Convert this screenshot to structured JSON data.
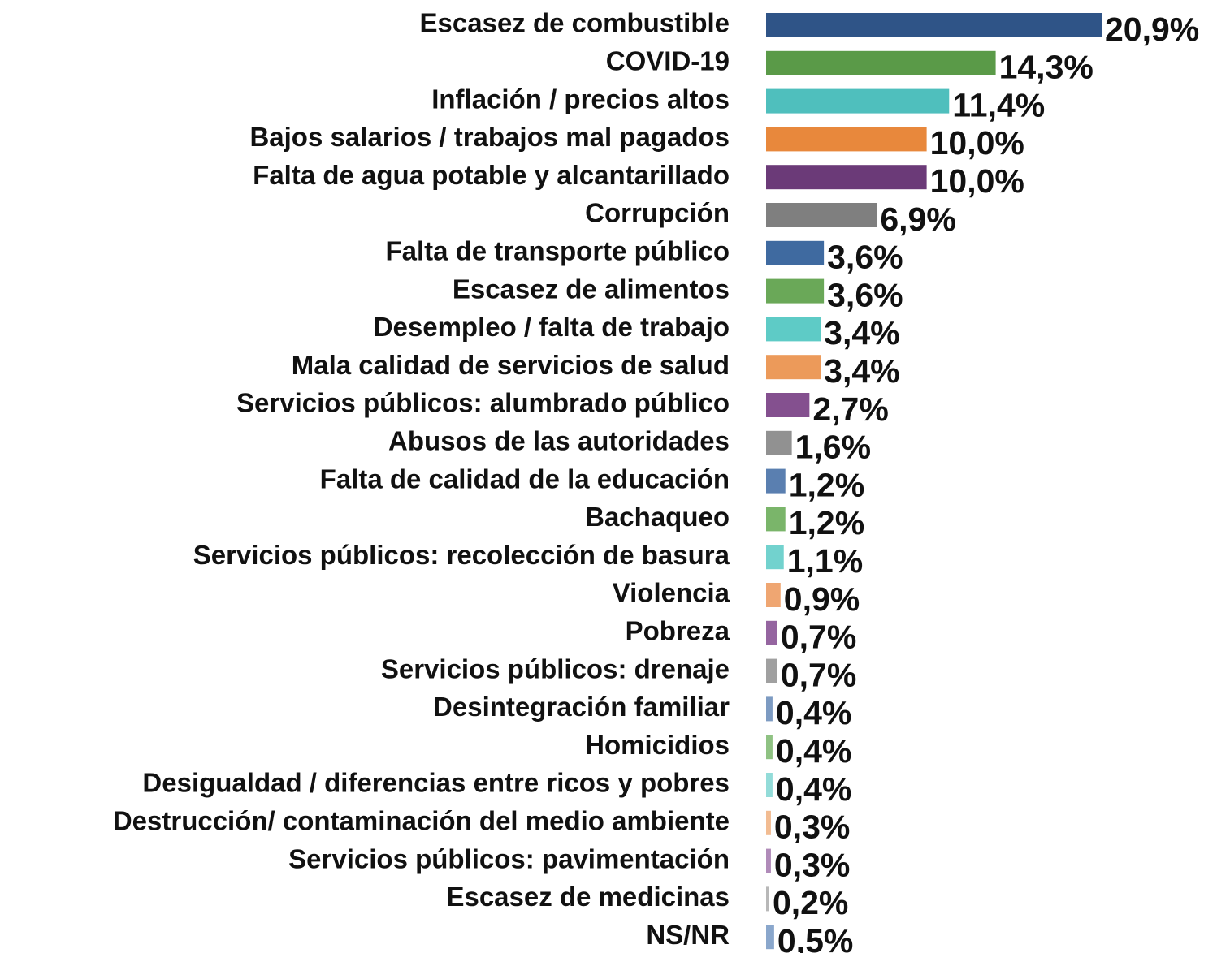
{
  "chart_data": {
    "type": "barh",
    "categories": [
      "Escasez de combustible",
      "COVID-19",
      "Inflación / precios altos",
      "Bajos salarios / trabajos mal pagados",
      "Falta de agua potable y alcantarillado",
      "Corrupción",
      "Falta de transporte público",
      "Escasez de alimentos",
      "Desempleo / falta de trabajo",
      "Mala calidad de servicios de salud",
      "Servicios públicos: alumbrado público",
      "Abusos de las autoridades",
      "Falta de calidad de la educación",
      "Bachaqueo",
      "Servicios públicos: recolección de basura",
      "Violencia",
      "Pobreza",
      "Servicios públicos: drenaje",
      "Desintegración familiar",
      "Homicidios",
      "Desigualdad / diferencias entre ricos y pobres",
      "Destrucción/ contaminación del medio ambiente",
      "Servicios públicos: pavimentación",
      "Escasez de medicinas",
      "NS/NR"
    ],
    "values": [
      20.9,
      14.3,
      11.4,
      10.0,
      10.0,
      6.9,
      3.6,
      3.6,
      3.4,
      3.4,
      2.7,
      1.6,
      1.2,
      1.2,
      1.1,
      0.9,
      0.7,
      0.7,
      0.4,
      0.4,
      0.4,
      0.3,
      0.3,
      0.2,
      0.5
    ],
    "value_labels": [
      "20,9%",
      "14,3%",
      "11,4%",
      "10,0%",
      "10,0%",
      "6,9%",
      "3,6%",
      "3,6%",
      "3,4%",
      "3,4%",
      "2,7%",
      "1,6%",
      "1,2%",
      "1,2%",
      "1,1%",
      "0,9%",
      "0,7%",
      "0,7%",
      "0,4%",
      "0,4%",
      "0,4%",
      "0,3%",
      "0,3%",
      "0,2%",
      "0,5%"
    ],
    "colors": [
      "#2f5487",
      "#5a9a48",
      "#4fbfbd",
      "#e8883c",
      "#6b3a78",
      "#7f7f7f",
      "#3f6aa0",
      "#6aa858",
      "#5ecbc6",
      "#ec9a5a",
      "#84508f",
      "#919191",
      "#5a7fb0",
      "#7ab56a",
      "#72d2ce",
      "#efa672",
      "#9565a0",
      "#a0a0a0",
      "#7d9bc2",
      "#8fc283",
      "#93dcd9",
      "#f2bc92",
      "#b08bb9",
      "#b8b8b8",
      "#8aa7cc"
    ]
  }
}
